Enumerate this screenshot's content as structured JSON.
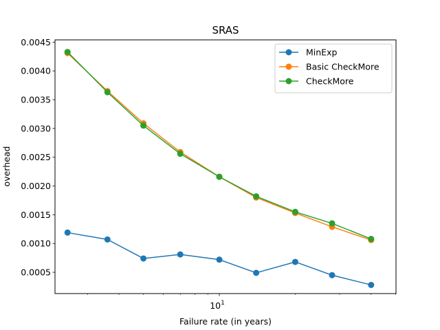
{
  "chart_data": {
    "type": "line",
    "title": "SRAS",
    "xlabel": "Failure rate (in years)",
    "ylabel": "overhead",
    "x_scale": "log",
    "xlim": [
      2.23,
      50.2
    ],
    "ylim": [
      0.00013,
      0.00454
    ],
    "x": [
      2.5,
      3.6,
      5,
      7,
      10,
      14,
      20,
      28,
      40
    ],
    "x_tick_labels": [
      {
        "value": 10,
        "base": "10",
        "exp": "1"
      }
    ],
    "y_ticks": [
      0.0005,
      0.001,
      0.0015,
      0.002,
      0.0025,
      0.003,
      0.0035,
      0.004,
      0.0045
    ],
    "y_tick_labels": [
      "0.0005",
      "0.0010",
      "0.0015",
      "0.0020",
      "0.0025",
      "0.0030",
      "0.0035",
      "0.0040",
      "0.0045"
    ],
    "legend_position": "top-right",
    "grid": false,
    "series": [
      {
        "name": "MinExp",
        "color": "#1f77b4",
        "values": [
          0.00119,
          0.00107,
          0.00074,
          0.00081,
          0.00072,
          0.00049,
          0.00068,
          0.00045,
          0.00028
        ]
      },
      {
        "name": "Basic CheckMore",
        "color": "#ff7f0e",
        "values": [
          0.00431,
          0.00365,
          0.00309,
          0.00259,
          0.00216,
          0.0018,
          0.00153,
          0.00129,
          0.00106
        ]
      },
      {
        "name": "CheckMore",
        "color": "#2ca02c",
        "values": [
          0.00433,
          0.00363,
          0.00305,
          0.00256,
          0.00216,
          0.00182,
          0.00155,
          0.00135,
          0.00108
        ]
      }
    ]
  }
}
